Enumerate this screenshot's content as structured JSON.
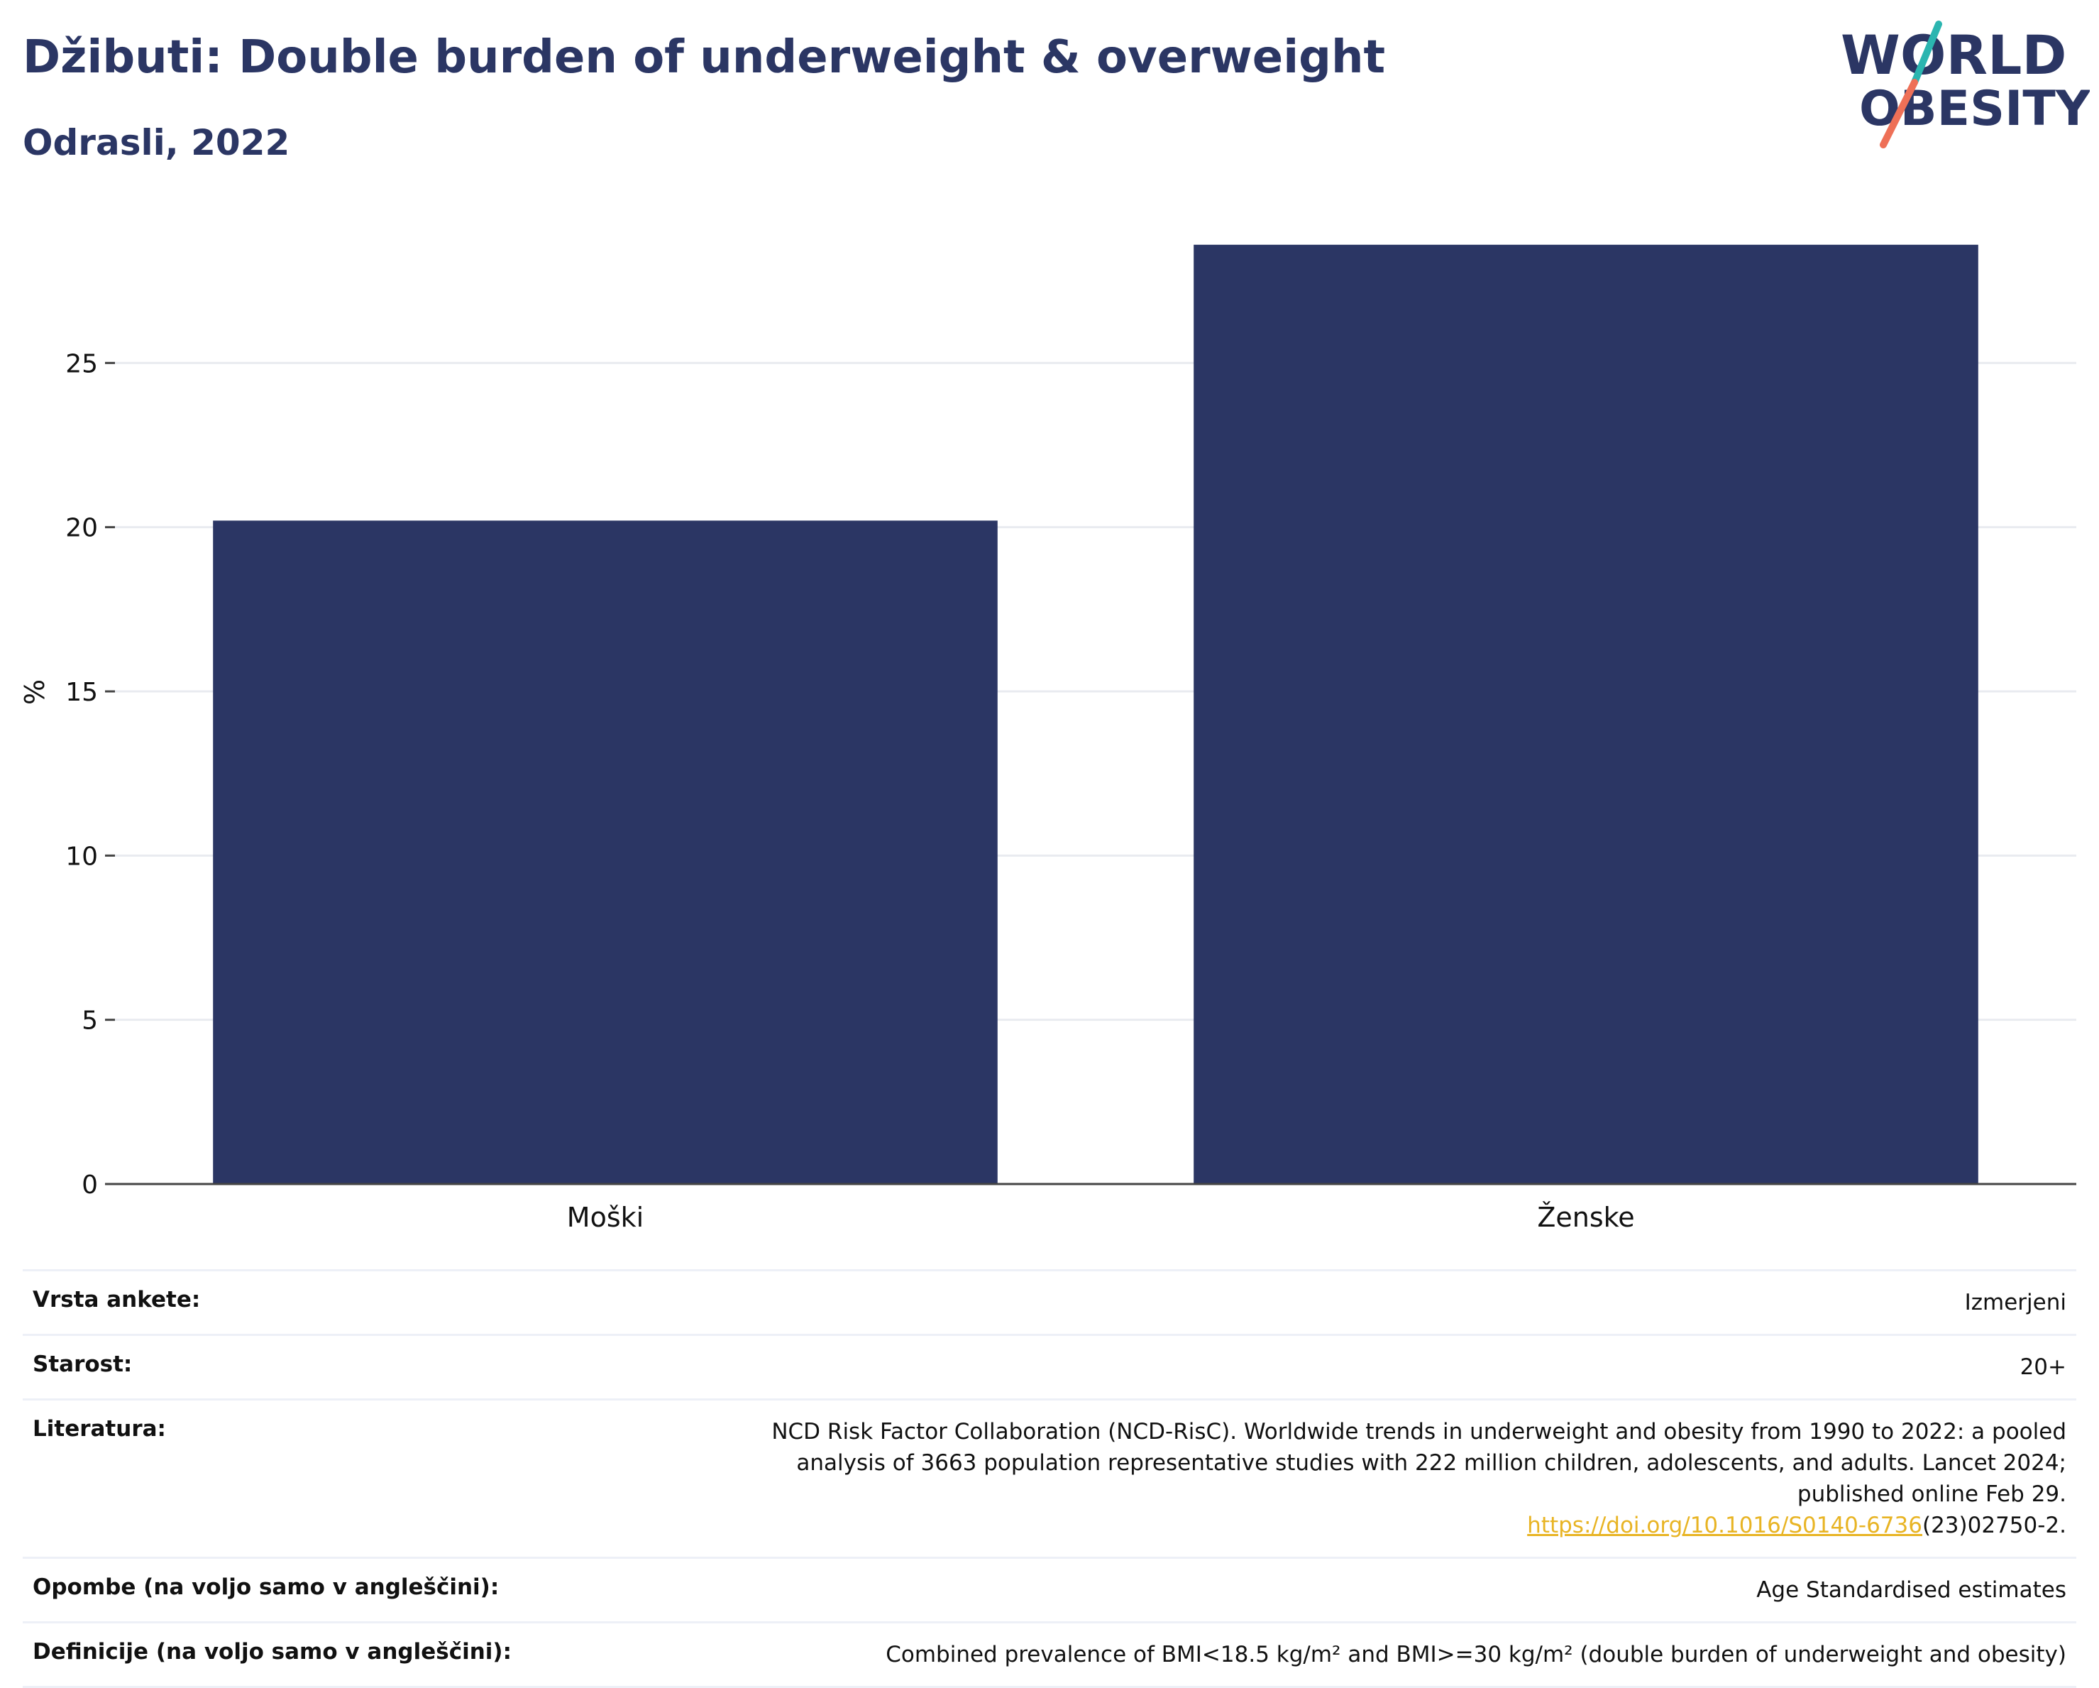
{
  "header": {
    "title": "Džibuti: Double burden of underweight & overweight",
    "subtitle": "Odrasli, 2022"
  },
  "logo": {
    "line1": "WORLD",
    "line2": "OBESITY",
    "colors": {
      "text": "#2b3664",
      "teal": "#2bb5b0",
      "coral": "#ee7057"
    }
  },
  "chart_data": {
    "type": "bar",
    "categories": [
      "Moški",
      "Ženske"
    ],
    "values": [
      20.2,
      28.6
    ],
    "ylabel": "%",
    "yticks": [
      0,
      5,
      10,
      15,
      20,
      25
    ],
    "ylim": [
      0,
      30
    ],
    "grid": true,
    "bar_color": "#2b3664"
  },
  "info": {
    "rows": [
      {
        "label": "Vrsta ankete:",
        "value": "Izmerjeni"
      },
      {
        "label": "Starost:",
        "value": "20+"
      },
      {
        "label": "Literatura:",
        "value": "NCD Risk Factor Collaboration (NCD-RisC). Worldwide trends in underweight and obesity from 1990 to 2022: a pooled analysis of 3663 population representative studies with 222 million children, adolescents, and adults. Lancet 2024; published online Feb 29.",
        "link": "https://doi.org/10.1016/S0140-6736",
        "link_suffix": "(23)02750-2."
      },
      {
        "label": "Opombe (na voljo samo v angleščini):",
        "value": "Age Standardised estimates"
      },
      {
        "label": "Definicije (na voljo samo v angleščini):",
        "value": "Combined prevalence of BMI<18.5 kg/m² and BMI>=30 kg/m² (double burden of underweight and obesity)"
      }
    ]
  }
}
